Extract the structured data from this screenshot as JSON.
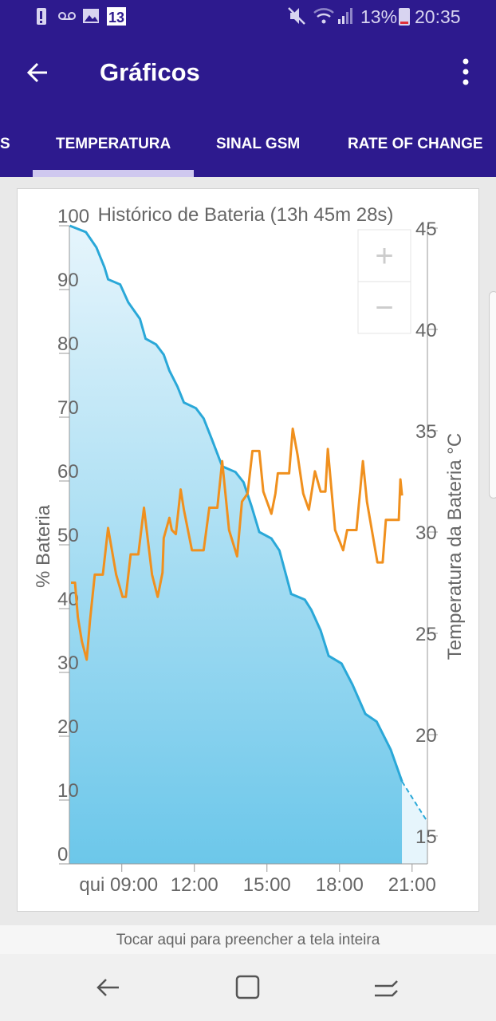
{
  "status_bar": {
    "battery_percent": "13%",
    "time": "20:35",
    "notification_badge": "13",
    "icons": [
      "battery-alert-icon",
      "voicemail-icon",
      "image-icon",
      "calendar-13-icon",
      "mute-icon",
      "wifi-icon",
      "signal-icon",
      "battery-icon"
    ]
  },
  "app_bar": {
    "title": "Gráficos",
    "back_icon": "arrow-left-icon",
    "menu_icon": "more-vert-icon"
  },
  "tabs": [
    {
      "label": "S"
    },
    {
      "label": "TEMPERATURA",
      "active": true
    },
    {
      "label": "SINAL GSM"
    },
    {
      "label": "RATE OF CHANGE"
    }
  ],
  "colors": {
    "header": "#2d1a8e",
    "battery_line": "#2aa8d8",
    "temperature_line": "#f0901e",
    "fill_top": "#e6f5fc",
    "fill_bottom": "#6cc7ea"
  },
  "chart_data": {
    "type": "line",
    "title": "Histórico de Bateria (13h 45m 28s)",
    "ylabel": "% Bateria",
    "y2label": "Temperatura da Bateria °C",
    "xlim": [
      "06:50",
      "21:38"
    ],
    "ylim": [
      0,
      100
    ],
    "y2lim": [
      13.66,
      45
    ],
    "x_ticks": [
      "qui 09:00",
      "12:00",
      "15:00",
      "18:00",
      "21:00"
    ],
    "x_tick_times": [
      "09:00",
      "12:00",
      "15:00",
      "18:00",
      "21:00"
    ],
    "y_ticks": [
      0,
      10,
      20,
      30,
      40,
      50,
      60,
      70,
      80,
      90,
      100
    ],
    "y2_ticks": [
      15,
      20,
      25,
      30,
      35,
      40,
      45
    ],
    "grid": false,
    "series": [
      {
        "axis": "left",
        "filled": true,
        "x": [
          "06:51",
          "07:31",
          "07:57",
          "08:17",
          "08:26",
          "08:56",
          "09:16",
          "09:45",
          "09:59",
          "10:25",
          "10:44",
          "10:58",
          "11:18",
          "11:34",
          "12:04",
          "12:23",
          "12:43",
          "13:09",
          "13:42",
          "14:02",
          "14:22",
          "14:41",
          "15:11",
          "15:31",
          "16:00",
          "16:34",
          "16:50",
          "17:13",
          "17:33",
          "18:05",
          "18:32",
          "19:04",
          "19:32",
          "20:07",
          "20:35"
        ],
        "y": [
          100,
          99,
          96.6,
          93.5,
          91.6,
          90.8,
          88,
          85.4,
          82.3,
          81.4,
          79.8,
          77.3,
          74.8,
          72.3,
          71.4,
          69.8,
          66.6,
          62.3,
          61.4,
          59.8,
          56,
          52,
          51,
          49.1,
          42.3,
          41.4,
          39.8,
          36.6,
          32.6,
          31.4,
          28.1,
          23.5,
          22.3,
          17.9,
          12.9
        ]
      },
      {
        "axis": "left",
        "projection": true,
        "dashed": true,
        "x": [
          "20:35",
          "21:38"
        ],
        "y": [
          12.9,
          6.6
        ]
      },
      {
        "axis": "right",
        "x": [
          "06:54",
          "07:04",
          "07:11",
          "07:21",
          "07:33",
          "07:41",
          "07:53",
          "08:13",
          "08:26",
          "08:46",
          "09:02",
          "09:10",
          "09:22",
          "09:41",
          "09:55",
          "10:15",
          "10:29",
          "10:41",
          "10:44",
          "10:58",
          "11:04",
          "11:14",
          "11:26",
          "11:34",
          "11:54",
          "12:23",
          "12:37",
          "12:57",
          "13:09",
          "13:26",
          "13:46",
          "13:58",
          "14:12",
          "14:24",
          "14:41",
          "14:51",
          "15:11",
          "15:21",
          "15:27",
          "15:55",
          "16:04",
          "16:16",
          "16:30",
          "16:44",
          "16:59",
          "17:13",
          "17:25",
          "17:31",
          "17:49",
          "18:09",
          "18:19",
          "18:42",
          "18:58",
          "19:08",
          "19:34",
          "19:47",
          "19:55",
          "20:27",
          "20:31",
          "20:35"
        ],
        "y": [
          27.5,
          27.5,
          25.8,
          24.6,
          23.7,
          25.6,
          27.9,
          27.9,
          30.2,
          27.9,
          26.8,
          26.8,
          28.9,
          28.9,
          31.2,
          27.9,
          26.8,
          28.0,
          29.7,
          30.7,
          30.1,
          29.9,
          32.1,
          31.1,
          29.1,
          29.1,
          31.2,
          31.2,
          33.5,
          30.1,
          28.8,
          31.5,
          31.9,
          34.0,
          34.0,
          32.0,
          30.9,
          31.9,
          32.9,
          32.9,
          35.1,
          33.8,
          31.9,
          31.1,
          33.0,
          32.0,
          32.0,
          34.1,
          30.1,
          29.1,
          30.1,
          30.1,
          33.5,
          31.5,
          28.5,
          28.5,
          30.6,
          30.6,
          32.6,
          31.8
        ]
      }
    ]
  },
  "zoom_controls": {
    "zoom_in": "+",
    "zoom_out": "−"
  },
  "fill_hint": "Tocar aqui para preencher a tela inteira",
  "nav_bar": {
    "icons": [
      "back-icon",
      "home-icon",
      "recents-icon"
    ]
  }
}
